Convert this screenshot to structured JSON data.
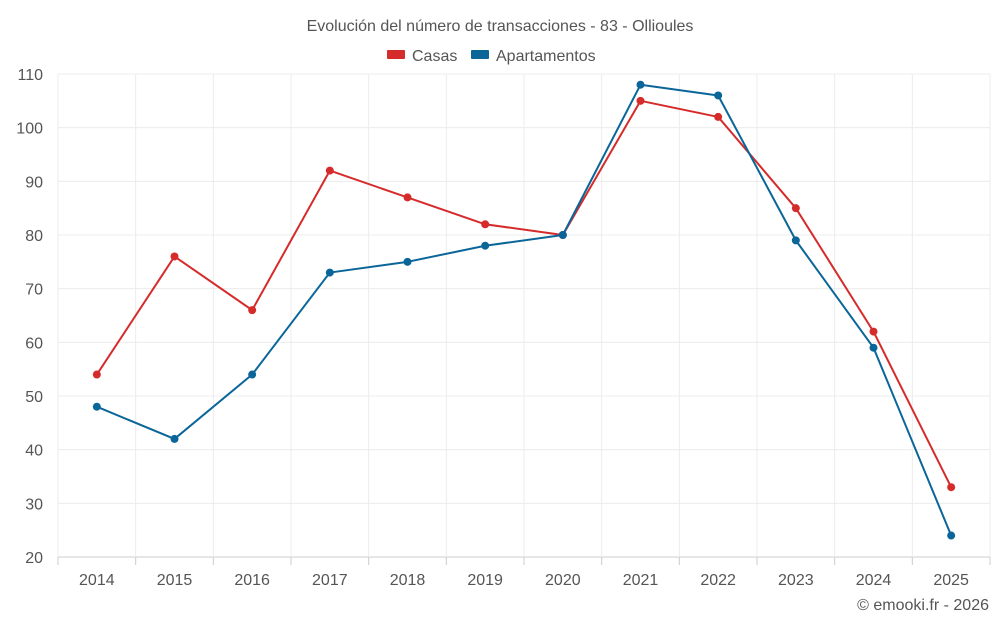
{
  "chart_data": {
    "type": "line",
    "title": "Evolución del número de transacciones - 83 - Ollioules",
    "xlabel": "",
    "ylabel": "",
    "categories": [
      "2014",
      "2015",
      "2016",
      "2017",
      "2018",
      "2019",
      "2020",
      "2021",
      "2022",
      "2023",
      "2024",
      "2025"
    ],
    "ylim": [
      20,
      110
    ],
    "yticks": [
      20,
      30,
      40,
      50,
      60,
      70,
      80,
      90,
      100,
      110
    ],
    "grid": true,
    "legend_position": "top-center",
    "series": [
      {
        "name": "Casas",
        "color": "#d62b2b",
        "values": [
          54,
          76,
          66,
          92,
          87,
          82,
          80,
          105,
          102,
          85,
          62,
          33
        ]
      },
      {
        "name": "Apartamentos",
        "color": "#0a6699",
        "values": [
          48,
          42,
          54,
          73,
          75,
          78,
          80,
          108,
          106,
          79,
          59,
          24
        ]
      }
    ],
    "credit": "© emooki.fr - 2026"
  }
}
